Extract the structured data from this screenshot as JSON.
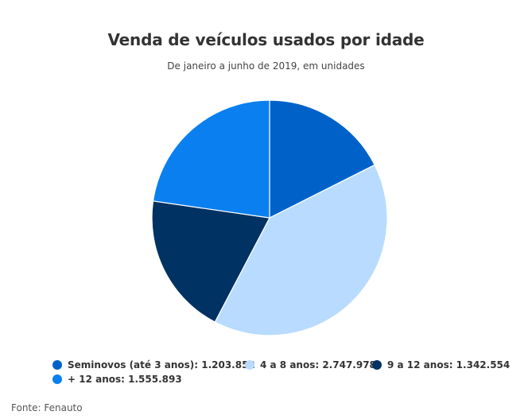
{
  "chart_data": {
    "type": "pie",
    "title": "Venda de veículos usados por idade",
    "subtitle": "De janeiro a junho de 2019, em unidades",
    "slices": [
      {
        "label": "Seminovos (até 3 anos)",
        "value": 1203852,
        "value_label": "1.203.852",
        "color": "#0062c8"
      },
      {
        "label": "4 a 8 anos",
        "value": 2747978,
        "value_label": "2.747.978",
        "color": "#b8dbff"
      },
      {
        "label": "9 a 12 anos",
        "value": 1342554,
        "value_label": "1.342.554",
        "color": "#003263"
      },
      {
        "label": "+ 12 anos",
        "value": 1555893,
        "value_label": "1.555.893",
        "color": "#0a7ff0"
      }
    ],
    "legend_position": "bottom",
    "source": "Fonte: Fenauto"
  }
}
